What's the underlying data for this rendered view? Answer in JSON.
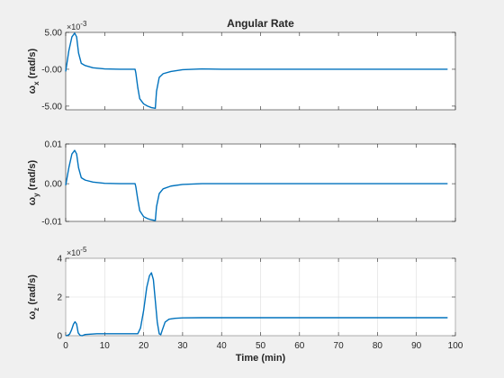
{
  "colors": {
    "series": "#0072bd",
    "background": "#f0f0f0",
    "axes": "#ffffff",
    "grid": "#dcdcdc"
  },
  "chart_data": [
    {
      "type": "line",
      "title": "Angular Rate",
      "ylabel": "ω",
      "ylabel_sub": "x",
      "ylabel_unit": "(rad/s)",
      "xlabel": "",
      "exponent": "×10",
      "exponent_power": "-3",
      "xlim": [
        0,
        100
      ],
      "ylim": [
        -5.5,
        5.0
      ],
      "yticks": [
        -5,
        0,
        5
      ],
      "yticklabels": [
        "-5.00",
        "-0.00",
        "5.00"
      ],
      "xticks": [
        0,
        10,
        20,
        30,
        40,
        50,
        60,
        70,
        80,
        90,
        100
      ],
      "xticklabels": [],
      "grid": false,
      "series": [
        {
          "x": [
            0,
            0.8,
            1.6,
            2.3,
            2.8,
            3.3,
            4.0,
            5.0,
            7.0,
            10,
            14,
            17.8,
            18.0,
            18.5,
            19,
            20,
            21,
            22,
            23.0,
            23.3,
            24,
            25,
            27,
            30,
            35,
            40,
            50,
            60,
            70,
            80,
            90,
            98
          ],
          "y": [
            -0.3,
            2.5,
            4.4,
            4.9,
            4.4,
            2.2,
            0.8,
            0.5,
            0.2,
            0.05,
            0.0,
            0.0,
            -0.5,
            -2.5,
            -4.0,
            -4.7,
            -5.0,
            -5.2,
            -5.3,
            -3.0,
            -1.1,
            -0.6,
            -0.3,
            -0.06,
            0.05,
            0.0,
            0.0,
            0.0,
            0.0,
            0.0,
            0.0,
            0.0
          ]
        }
      ]
    },
    {
      "type": "line",
      "title": "",
      "ylabel": "ω",
      "ylabel_sub": "y",
      "ylabel_unit": "(rad/s)",
      "xlabel": "",
      "xlim": [
        0,
        100
      ],
      "ylim": [
        -0.0095,
        0.01
      ],
      "yticks": [
        -0.01,
        0,
        0.01
      ],
      "yticklabels": [
        "-0.01",
        "0.00",
        "0.01"
      ],
      "xticks": [
        0,
        10,
        20,
        30,
        40,
        50,
        60,
        70,
        80,
        90,
        100
      ],
      "xticklabels": [],
      "grid": false,
      "series": [
        {
          "x": [
            0,
            0.8,
            1.6,
            2.3,
            2.8,
            3.3,
            4.0,
            5.0,
            7.0,
            10,
            14,
            17.8,
            18.0,
            18.5,
            19,
            20,
            21,
            22,
            23.0,
            23.3,
            24,
            25,
            27,
            30,
            35,
            40,
            50,
            60,
            70,
            80,
            90,
            98
          ],
          "y": [
            -0.0004,
            0.004,
            0.0075,
            0.0084,
            0.0075,
            0.004,
            0.0015,
            0.0009,
            0.0004,
            0.0001,
            0.0,
            0.0,
            -0.0008,
            -0.004,
            -0.0068,
            -0.0083,
            -0.0088,
            -0.0091,
            -0.0093,
            -0.0058,
            -0.0025,
            -0.0013,
            -0.0006,
            -0.0002,
            0.0,
            0.0,
            0.0,
            0.0,
            0.0,
            0.0,
            0.0,
            0.0
          ]
        }
      ]
    },
    {
      "type": "line",
      "title": "",
      "ylabel": "ω",
      "ylabel_sub": "z",
      "ylabel_unit": "(rad/s)",
      "xlabel": "Time (min)",
      "exponent": "×10",
      "exponent_power": "-5",
      "xlim": [
        0,
        100
      ],
      "ylim": [
        0,
        4
      ],
      "yticks": [
        0,
        2,
        4
      ],
      "yticklabels": [
        "0",
        "2",
        "4"
      ],
      "xticks": [
        0,
        10,
        20,
        30,
        40,
        50,
        60,
        70,
        80,
        90,
        100
      ],
      "xticklabels": [
        "0",
        "10",
        "20",
        "30",
        "40",
        "50",
        "60",
        "70",
        "80",
        "90",
        "100"
      ],
      "grid": true,
      "series": [
        {
          "x": [
            0,
            0.5,
            1.0,
            1.5,
            2.0,
            2.4,
            2.8,
            3.2,
            3.7,
            4.2,
            5,
            8,
            12,
            17,
            18.5,
            19.2,
            20,
            20.8,
            21.5,
            22.0,
            22.5,
            23.0,
            23.5,
            24.0,
            24.4,
            24.8,
            25.5,
            26.5,
            28,
            30,
            35,
            40,
            50,
            60,
            70,
            80,
            90,
            98
          ],
          "y": [
            0.0,
            0.02,
            0.08,
            0.3,
            0.6,
            0.72,
            0.6,
            0.15,
            0.02,
            0.0,
            0.06,
            0.1,
            0.1,
            0.1,
            0.1,
            0.4,
            1.3,
            2.5,
            3.1,
            3.25,
            2.9,
            1.8,
            0.7,
            0.1,
            0.05,
            0.3,
            0.7,
            0.85,
            0.9,
            0.92,
            0.93,
            0.93,
            0.93,
            0.93,
            0.93,
            0.93,
            0.93,
            0.93
          ]
        }
      ]
    }
  ]
}
